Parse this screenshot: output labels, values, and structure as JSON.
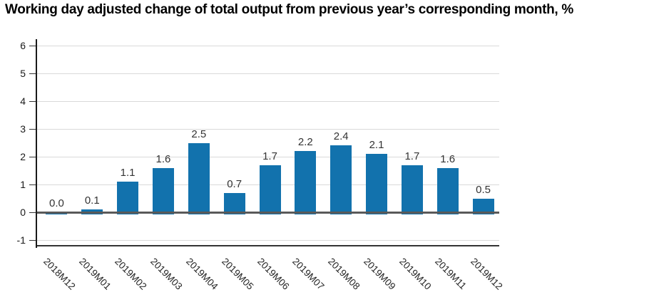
{
  "page": {
    "title": "Working day adjusted change of total output from previous year’s corresponding month, %"
  },
  "chart_data": {
    "type": "bar",
    "title": "Working day adjusted change of total output from previous year’s corresponding month, %",
    "categories": [
      "2018M12",
      "2019M01",
      "2019M02",
      "2019M03",
      "2019M04",
      "2019M05",
      "2019M06",
      "2019M07",
      "2019M08",
      "2019M09",
      "2019M10",
      "2019M11",
      "2019M12"
    ],
    "values": [
      0.0,
      0.1,
      1.1,
      1.6,
      2.5,
      0.7,
      1.7,
      2.2,
      2.4,
      2.1,
      1.7,
      1.6,
      0.5
    ],
    "value_labels": [
      "0.0",
      "0.1",
      "1.1",
      "1.6",
      "2.5",
      "0.7",
      "1.7",
      "2.2",
      "2.4",
      "2.1",
      "1.7",
      "1.6",
      "0.5"
    ],
    "xlabel": "",
    "ylabel": "",
    "yticks": [
      6,
      5,
      4,
      3,
      2,
      1,
      0,
      -1
    ],
    "ylim": [
      -1.25,
      6.2
    ],
    "grid": true,
    "legend_position": "none",
    "colors": {
      "bar": "#1272ad",
      "gridline": "#d9d9d9",
      "zero_line": "#595959",
      "axis_left": "#1a1a1a",
      "axis_bottom": "#333333",
      "tick_mark": "#333333",
      "text": "#262626",
      "title_text": "#000000",
      "background": "#ffffff"
    }
  }
}
